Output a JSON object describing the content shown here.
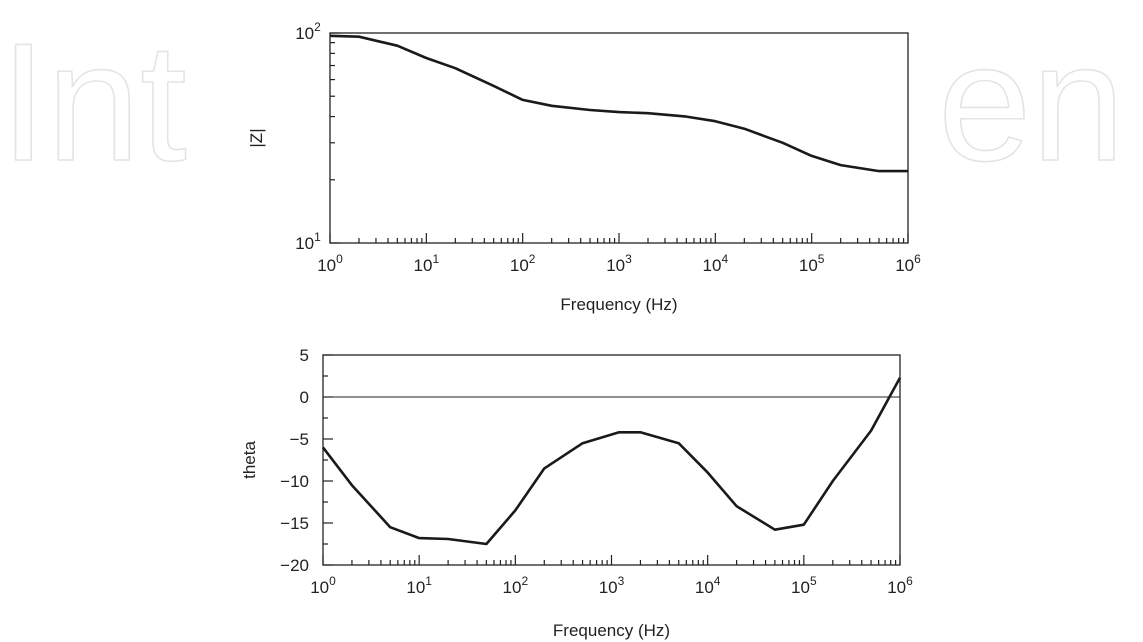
{
  "watermark": {
    "left": "Int",
    "right": "en"
  },
  "chart_data": [
    {
      "type": "line",
      "xscale": "log",
      "yscale": "log",
      "xlabel": "Frequency (Hz)",
      "ylabel": "|Z|",
      "xlim": [
        1,
        1000000
      ],
      "ylim": [
        10,
        100
      ],
      "grid": false,
      "x_ticks": [
        {
          "base": "10",
          "exp": "0",
          "value": 1
        },
        {
          "base": "10",
          "exp": "1",
          "value": 10
        },
        {
          "base": "10",
          "exp": "2",
          "value": 100
        },
        {
          "base": "10",
          "exp": "3",
          "value": 1000
        },
        {
          "base": "10",
          "exp": "4",
          "value": 10000
        },
        {
          "base": "10",
          "exp": "5",
          "value": 100000
        },
        {
          "base": "10",
          "exp": "6",
          "value": 1000000
        }
      ],
      "y_ticks": [
        {
          "base": "10",
          "exp": "1",
          "value": 10
        },
        {
          "base": "10",
          "exp": "2",
          "value": 100
        }
      ],
      "series": [
        {
          "x": [
            1,
            2,
            5,
            10,
            20,
            50,
            100,
            200,
            500,
            1000,
            2000,
            5000,
            10000,
            20000,
            50000,
            100000,
            200000,
            500000,
            1000000
          ],
          "y": [
            97,
            96,
            87,
            76,
            68,
            56,
            48,
            45,
            43,
            42,
            41.5,
            40,
            38,
            35,
            30,
            26,
            23.5,
            22,
            22
          ]
        }
      ]
    },
    {
      "type": "line",
      "xscale": "log",
      "xlabel": "Frequency (Hz)",
      "ylabel": "theta",
      "xlim": [
        1,
        1000000
      ],
      "ylim": [
        -20,
        5
      ],
      "y_ticks": [
        5,
        0,
        -5,
        -10,
        -15,
        -20
      ],
      "grid": false,
      "x_ticks": [
        {
          "base": "10",
          "exp": "0",
          "value": 1
        },
        {
          "base": "10",
          "exp": "1",
          "value": 10
        },
        {
          "base": "10",
          "exp": "2",
          "value": 100
        },
        {
          "base": "10",
          "exp": "3",
          "value": 1000
        },
        {
          "base": "10",
          "exp": "4",
          "value": 10000
        },
        {
          "base": "10",
          "exp": "5",
          "value": 100000
        },
        {
          "base": "10",
          "exp": "6",
          "value": 1000000
        }
      ],
      "reference_line": 0,
      "series": [
        {
          "x": [
            1,
            2,
            5,
            10,
            20,
            50,
            100,
            200,
            500,
            1200,
            2000,
            5000,
            10000,
            20000,
            50000,
            100000,
            200000,
            500000,
            1000000
          ],
          "y": [
            -6,
            -10.5,
            -15.5,
            -16.8,
            -16.9,
            -17.5,
            -13.5,
            -8.5,
            -5.5,
            -4.2,
            -4.2,
            -5.5,
            -9,
            -13,
            -15.8,
            -15.2,
            -10,
            -4,
            2.3
          ]
        }
      ]
    }
  ]
}
